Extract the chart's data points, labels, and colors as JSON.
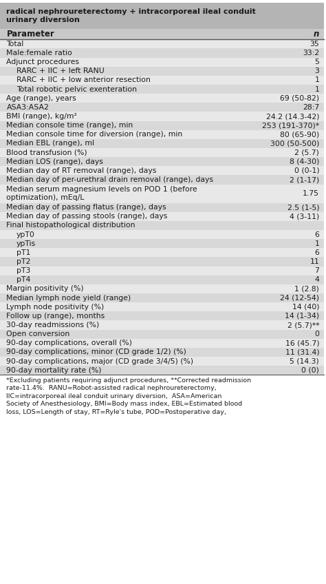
{
  "title": "radical nephroureterectomy + intracorporeal ileal conduit\nurinary diversion",
  "col1_header": "Parameter",
  "col2_header": "n",
  "rows": [
    {
      "param": "Total",
      "value": "35",
      "indent": 0
    },
    {
      "param": "Male:female ratio",
      "value": "33:2",
      "indent": 0
    },
    {
      "param": "Adjunct procedures",
      "value": "5",
      "indent": 0
    },
    {
      "param": "RARC + IIC + left RANU",
      "value": "3",
      "indent": 1
    },
    {
      "param": "RARC + IIC + low anterior resection",
      "value": "1",
      "indent": 1
    },
    {
      "param": "Total robotic pelvic exenteration",
      "value": "1",
      "indent": 1
    },
    {
      "param": "Age (range), years",
      "value": "69 (50-82)",
      "indent": 0
    },
    {
      "param": "ASA3:ASA2",
      "value": "28:7",
      "indent": 0
    },
    {
      "param": "BMI (range), kg/m²",
      "value": "24.2 (14.3-42)",
      "indent": 0
    },
    {
      "param": "Median console time (range), min",
      "value": "253 (191-370)*",
      "indent": 0
    },
    {
      "param": "Median console time for diversion (range), min",
      "value": "80 (65-90)",
      "indent": 0
    },
    {
      "param": "Median EBL (range), ml",
      "value": "300 (50-500)",
      "indent": 0
    },
    {
      "param": "Blood transfusion (%)",
      "value": "2 (5.7)",
      "indent": 0
    },
    {
      "param": "Median LOS (range), days",
      "value": "8 (4-30)",
      "indent": 0
    },
    {
      "param": "Median day of RT removal (range), days",
      "value": "0 (0-1)",
      "indent": 0
    },
    {
      "param": "Median day of per-urethral drain removal (range), days",
      "value": "2 (1-17)",
      "indent": 0
    },
    {
      "param": "Median serum magnesium levels on POD 1 (before\noptimization), mEq/L",
      "value": "1.75",
      "indent": 0
    },
    {
      "param": "Median day of passing flatus (range), days",
      "value": "2.5 (1-5)",
      "indent": 0
    },
    {
      "param": "Median day of passing stools (range), days",
      "value": "4 (3-11)",
      "indent": 0
    },
    {
      "param": "Final histopathological distribution",
      "value": "",
      "indent": 0
    },
    {
      "param": "ypT0",
      "value": "6",
      "indent": 1
    },
    {
      "param": "ypTis",
      "value": "1",
      "indent": 1
    },
    {
      "param": "pT1",
      "value": "6",
      "indent": 1
    },
    {
      "param": "pT2",
      "value": "11",
      "indent": 1
    },
    {
      "param": "pT3",
      "value": "7",
      "indent": 1
    },
    {
      "param": "pT4",
      "value": "4",
      "indent": 1
    },
    {
      "param": "Margin positivity (%)",
      "value": "1 (2.8)",
      "indent": 0
    },
    {
      "param": "Median lymph node yield (range)",
      "value": "24 (12-54)",
      "indent": 0
    },
    {
      "param": "Lymph node positivity (%)",
      "value": "14 (40)",
      "indent": 0
    },
    {
      "param": "Follow up (range), months",
      "value": "14 (1-34)",
      "indent": 0
    },
    {
      "param": "30-day readmissions (%)",
      "value": "2 (5.7)**",
      "indent": 0
    },
    {
      "param": "Open conversion",
      "value": "0",
      "indent": 0
    },
    {
      "param": "90-day complications, overall (%)",
      "value": "16 (45.7)",
      "indent": 0
    },
    {
      "param": "90-day complications, minor (CD grade 1/2) (%)",
      "value": "11 (31.4)",
      "indent": 0
    },
    {
      "param": "90-day complications, major (CD grade 3/4/5) (%)",
      "value": "5 (14.3)",
      "indent": 0
    },
    {
      "param": "90-day mortality rate (%)",
      "value": "0 (0)",
      "indent": 0
    }
  ],
  "footnote": "*Excluding patients requiring adjunct procedures, **Corrected readmission\nrate-11.4%.  RANU=Robot-assisted radical nephroureterectomy,\nIIC=intracorporeal ileal conduit urinary diversion,  ASA=American\nSociety of Anesthesiology, BMI=Body mass index, EBL=Estimated blood\nloss, LOS=Length of stay, RT=Ryle's tube, POD=Postoperative day,",
  "bg_color_title": "#b4b4b4",
  "bg_color_header": "#c8c8c8",
  "bg_color_row_odd": "#e8e8e8",
  "bg_color_row_even": "#d8d8d8",
  "text_color": "#1a1a1a",
  "header_font_size": 8.5,
  "row_font_size": 7.8,
  "footnote_font_size": 6.8
}
